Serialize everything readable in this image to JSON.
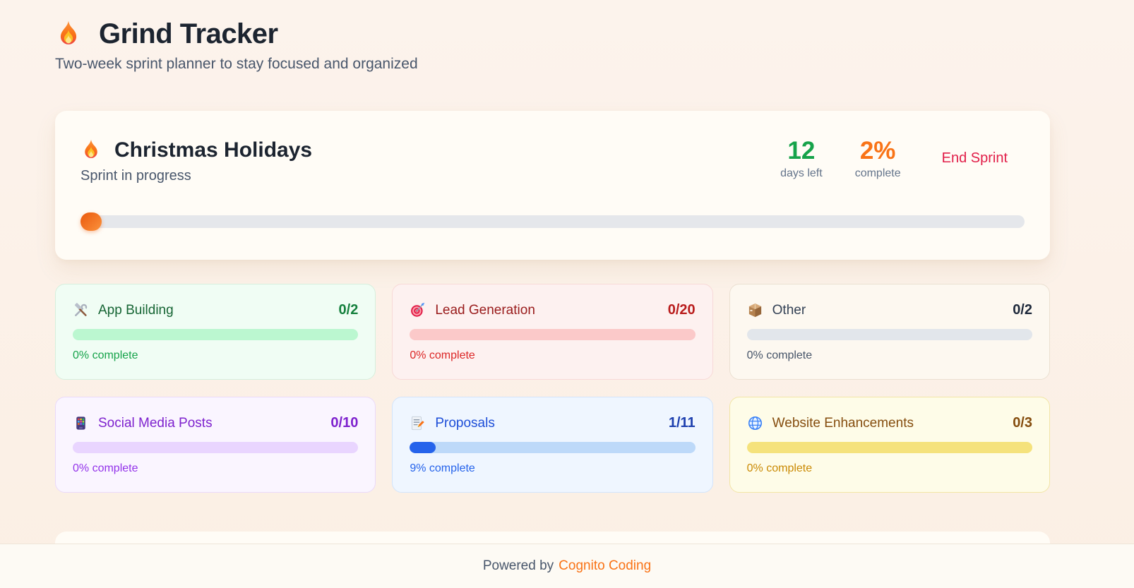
{
  "app": {
    "header_icon": "flame-icon",
    "title": "Grind Tracker",
    "subtitle": "Two-week sprint planner to stay focused and organized"
  },
  "sprint": {
    "icon": "flame-icon",
    "name": "Christmas Holidays",
    "status": "Sprint in progress",
    "days_left_value": "12",
    "days_left_label": "days left",
    "days_left_color": "#16a34a",
    "complete_value": "2%",
    "complete_label": "complete",
    "complete_color": "#f97316",
    "end_sprint_label": "End Sprint",
    "end_sprint_color": "#e11d48",
    "progress_percent": 2,
    "progress_fill_color": "#ea580c",
    "progress_track_color": "#e5e7eb"
  },
  "categories": [
    {
      "icon": "hammer-wrench-icon",
      "name": "App Building",
      "count": "0/2",
      "caption": "0% complete",
      "progress_percent": 0,
      "accent": "#15803d",
      "bg": "#f0fdf4"
    },
    {
      "icon": "target-icon",
      "name": "Lead Generation",
      "count": "0/20",
      "caption": "0% complete",
      "progress_percent": 0,
      "accent": "#b91c1c",
      "bg": "#fdf1f0"
    },
    {
      "icon": "package-icon",
      "name": "Other",
      "count": "0/2",
      "caption": "0% complete",
      "progress_percent": 0,
      "accent": "#334155",
      "bg": "#fdf8f0"
    },
    {
      "icon": "mobile-apps-icon",
      "name": "Social Media Posts",
      "count": "0/10",
      "caption": "0% complete",
      "progress_percent": 0,
      "accent": "#7e22ce",
      "bg": "#faf5ff"
    },
    {
      "icon": "memo-icon",
      "name": "Proposals",
      "count": "1/11",
      "caption": "9% complete",
      "progress_percent": 9,
      "accent": "#1d4ed8",
      "bg": "#eff6ff"
    },
    {
      "icon": "globe-icon",
      "name": "Website Enhancements",
      "count": "0/3",
      "caption": "0% complete",
      "progress_percent": 0,
      "accent": "#854d0e",
      "bg": "#fefce8"
    }
  ],
  "footer": {
    "prefix": "Powered by",
    "brand": "Cognito Coding",
    "brand_color": "#f97316"
  }
}
